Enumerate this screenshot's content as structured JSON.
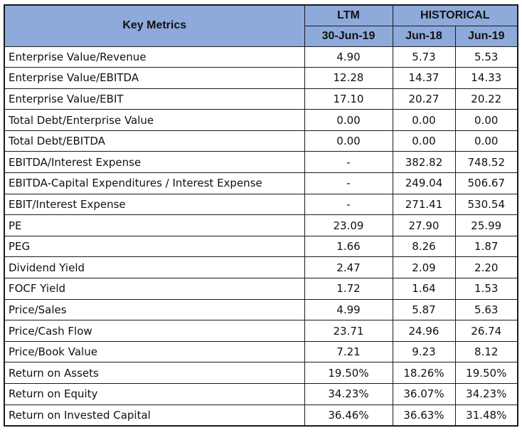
{
  "table": {
    "header": {
      "key_metrics": "Key Metrics",
      "ltm": "LTM",
      "historical": "HISTORICAL",
      "ltm_date": "30-Jun-19",
      "hist_date_1": "Jun-18",
      "hist_date_2": "Jun-19"
    },
    "rows": [
      {
        "label": "Enterprise Value/Revenue",
        "ltm": "4.90",
        "jun18": "5.73",
        "jun19": "5.53"
      },
      {
        "label": "Enterprise Value/EBITDA",
        "ltm": "12.28",
        "jun18": "14.37",
        "jun19": "14.33"
      },
      {
        "label": "Enterprise Value/EBIT",
        "ltm": "17.10",
        "jun18": "20.27",
        "jun19": "20.22"
      },
      {
        "label": "Total Debt/Enterprise Value",
        "ltm": "0.00",
        "jun18": "0.00",
        "jun19": "0.00"
      },
      {
        "label": "Total Debt/EBITDA",
        "ltm": "0.00",
        "jun18": "0.00",
        "jun19": "0.00"
      },
      {
        "label": "EBITDA/Interest Expense",
        "ltm": "-",
        "jun18": "382.82",
        "jun19": "748.52"
      },
      {
        "label": "EBITDA-Capital Expenditures / Interest Expense",
        "ltm": "-",
        "jun18": "249.04",
        "jun19": "506.67"
      },
      {
        "label": "EBIT/Interest Expense",
        "ltm": "-",
        "jun18": "271.41",
        "jun19": "530.54"
      },
      {
        "label": "PE",
        "ltm": "23.09",
        "jun18": "27.90",
        "jun19": "25.99"
      },
      {
        "label": "PEG",
        "ltm": "1.66",
        "jun18": "8.26",
        "jun19": "1.87"
      },
      {
        "label": "Dividend Yield",
        "ltm": "2.47",
        "jun18": "2.09",
        "jun19": "2.20"
      },
      {
        "label": "FOCF Yield",
        "ltm": "1.72",
        "jun18": "1.64",
        "jun19": "1.53"
      },
      {
        "label": "Price/Sales",
        "ltm": "4.99",
        "jun18": "5.87",
        "jun19": "5.63"
      },
      {
        "label": "Price/Cash Flow",
        "ltm": "23.71",
        "jun18": "24.96",
        "jun19": "26.74"
      },
      {
        "label": "Price/Book Value",
        "ltm": "7.21",
        "jun18": "9.23",
        "jun19": "8.12"
      },
      {
        "label": "Return on Assets",
        "ltm": "19.50%",
        "jun18": "18.26%",
        "jun19": "19.50%"
      },
      {
        "label": "Return on Equity",
        "ltm": "34.23%",
        "jun18": "36.07%",
        "jun19": "34.23%"
      },
      {
        "label": "Return on Invested Capital",
        "ltm": "36.46%",
        "jun18": "36.63%",
        "jun19": "31.48%"
      }
    ]
  },
  "colors": {
    "header_fill": "#8eaadb",
    "border": "#1a1a1a"
  }
}
